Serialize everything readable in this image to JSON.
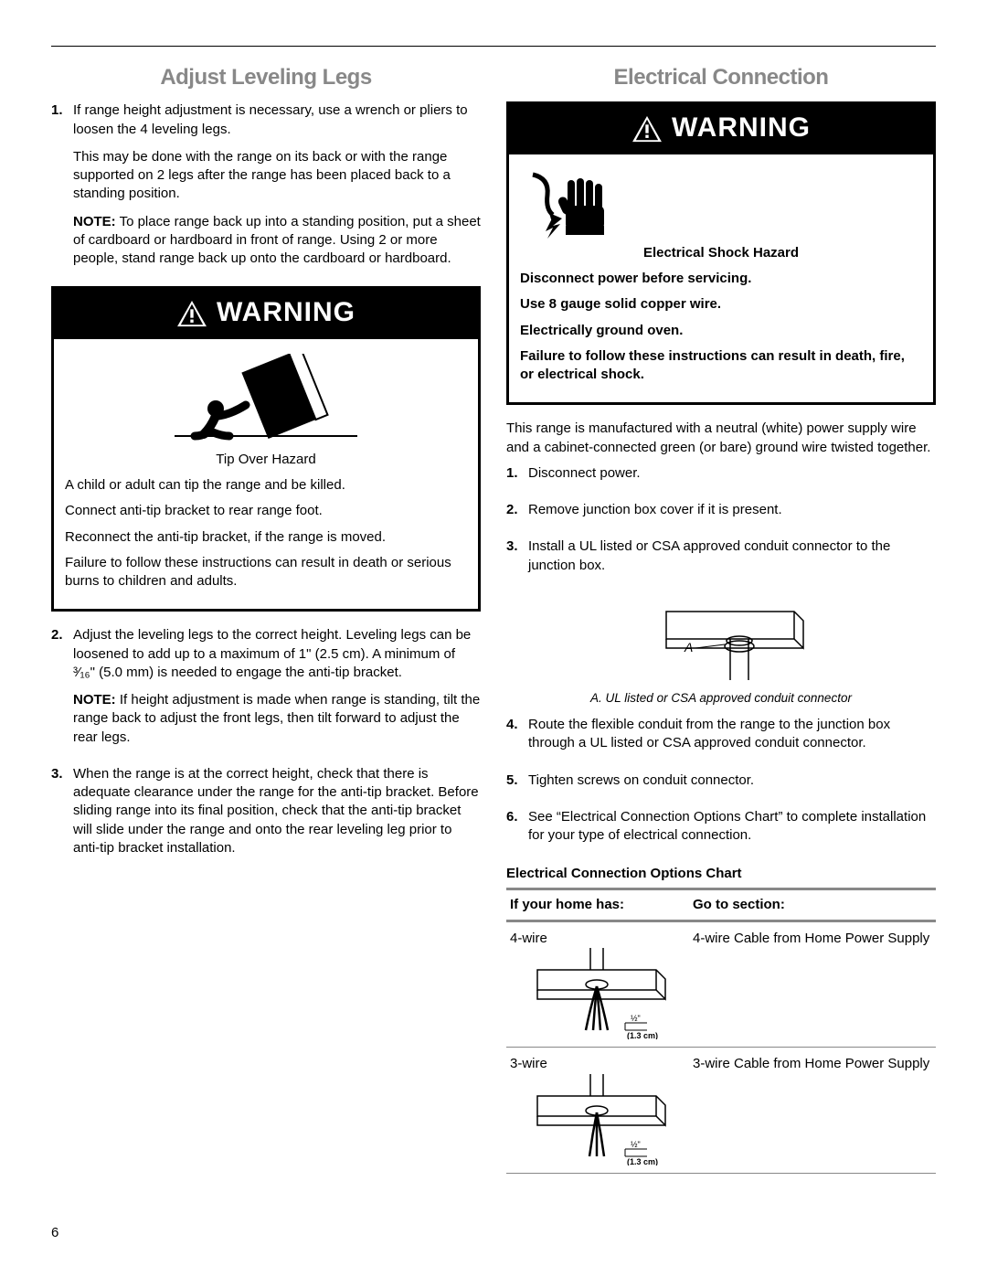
{
  "page_number": "6",
  "left": {
    "title": "Adjust Leveling Legs",
    "items": [
      {
        "num": "1.",
        "paras": [
          "If range height adjustment is necessary, use a wrench or pliers to loosen the 4 leveling legs.",
          "This may be done with the range on its back or with the range supported on 2 legs after the range has been placed back to a standing position."
        ],
        "note": "To place range back up into a standing position, put a sheet of cardboard or hardboard in front of range. Using 2 or more people, stand range back up onto the cardboard or hardboard."
      },
      {
        "num": "2.",
        "paras": [
          "Adjust the leveling legs to the correct height. Leveling legs can be loosened to add up to a maximum of 1\" (2.5 cm). A minimum of ³⁄₁₆\" (5.0 mm) is needed to engage the anti-tip bracket."
        ],
        "note": "If height adjustment is made when range is standing, tilt the range back to adjust the front legs, then tilt forward to adjust the rear legs."
      },
      {
        "num": "3.",
        "paras": [
          "When the range is at the correct height, check that there is adequate clearance under the range for the anti-tip bracket. Before sliding range into its final position, check that the anti-tip bracket will slide under the range and onto the rear leveling leg prior to anti-tip bracket installation."
        ]
      }
    ],
    "warning": {
      "header": "WARNING",
      "hazard_title": "Tip Over Hazard",
      "lines": [
        "A child or adult can tip the range and be killed.",
        "Connect anti-tip bracket to rear range foot.",
        "Reconnect the anti-tip bracket, if the range is moved.",
        "Failure to follow these instructions can result in death or serious burns to children and adults."
      ]
    }
  },
  "right": {
    "title": "Electrical Connection",
    "warning": {
      "header": "WARNING",
      "hazard_title": "Electrical Shock Hazard",
      "lines": [
        "Disconnect power before servicing.",
        "Use 8 gauge solid copper wire.",
        "Electrically ground oven.",
        "Failure to follow these instructions can result in death, fire, or electrical shock."
      ]
    },
    "intro": "This range is manufactured with a neutral (white) power supply wire and a cabinet-connected green (or bare) ground wire twisted together.",
    "items": [
      {
        "num": "1.",
        "text": "Disconnect power."
      },
      {
        "num": "2.",
        "text": "Remove junction box cover if it is present."
      },
      {
        "num": "3.",
        "text": "Install a UL listed or CSA approved conduit connector to the junction box."
      },
      {
        "num": "4.",
        "text": "Route the flexible conduit from the range to the junction box through a UL listed or CSA approved conduit connector."
      },
      {
        "num": "5.",
        "text": "Tighten screws on conduit connector."
      },
      {
        "num": "6.",
        "text": "See “Electrical Connection Options Chart” to complete installation for your type of electrical connection."
      }
    ],
    "fig_label": "A",
    "fig_caption": "A. UL listed or CSA approved conduit connector",
    "chart_title": "Electrical Connection Options Chart",
    "table": {
      "headers": [
        "If your home has:",
        "Go to section:"
      ],
      "rows": [
        {
          "c1": "4-wire",
          "c2": "4-wire Cable from Home Power Supply",
          "wires": 4,
          "dim1": "½\"",
          "dim2": "(1.3 cm)"
        },
        {
          "c1": "3-wire",
          "c2": "3-wire Cable from Home Power Supply",
          "wires": 3,
          "dim1": "½\"",
          "dim2": "(1.3 cm)"
        }
      ]
    }
  }
}
